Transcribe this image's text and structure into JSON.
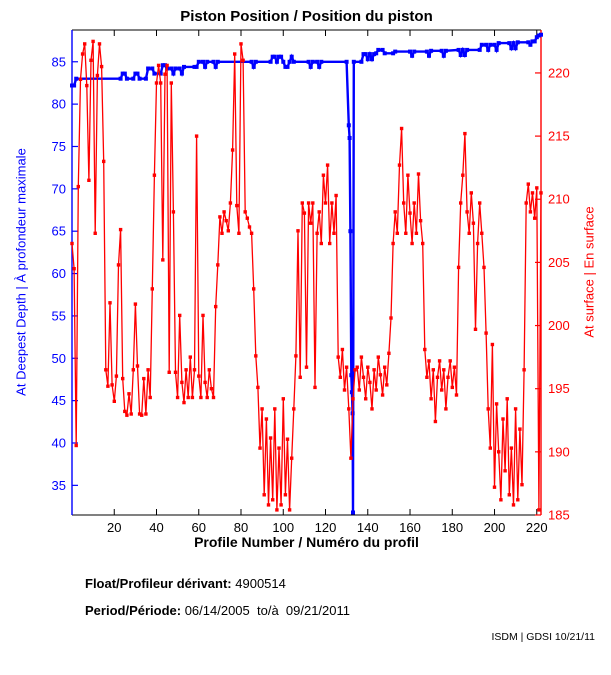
{
  "title": "Piston Position / Position du piston",
  "footer": {
    "float_label": "Float/Profileur dérivant:",
    "float_value": "4900514",
    "period_label": "Period/Période:",
    "period_value": "06/14/2005  to/à  09/21/2011",
    "credit": "ISDM | GDSI 10/21/11"
  },
  "chart_data": {
    "type": "line",
    "title": "Piston Position / Position du piston",
    "xlabel": "Profile Number / Numéro du profil",
    "xlim": [
      0,
      222
    ],
    "x_ticks": [
      20,
      40,
      60,
      80,
      100,
      120,
      140,
      160,
      180,
      200,
      220
    ],
    "grid": false,
    "left_axis": {
      "label": "At Deepest Depth | À profondeur maximale",
      "color": "#0000ff",
      "lim": [
        31.5,
        88.75
      ],
      "ticks": [
        35,
        40,
        45,
        50,
        55,
        60,
        65,
        70,
        75,
        80,
        85
      ]
    },
    "right_axis": {
      "label": "At surface | En surface",
      "color": "#ff0000",
      "lim": [
        185,
        223.4
      ],
      "ticks": [
        185,
        190,
        195,
        200,
        205,
        210,
        215,
        220
      ]
    },
    "series": [
      {
        "name": "piston-at-deepest-depth",
        "axis": "left",
        "color": "#0000ff",
        "line_width": 2.4,
        "marker_size": 4,
        "points": [
          [
            0,
            82.2
          ],
          [
            1,
            82.2
          ],
          [
            2,
            83
          ],
          [
            23,
            83
          ],
          [
            24,
            83.6
          ],
          [
            25,
            83.6
          ],
          [
            26,
            83
          ],
          [
            29,
            83
          ],
          [
            30,
            83.6
          ],
          [
            31,
            83.6
          ],
          [
            32,
            83
          ],
          [
            35,
            83
          ],
          [
            36,
            84.2
          ],
          [
            38,
            84.2
          ],
          [
            39,
            83.6
          ],
          [
            42,
            83.6
          ],
          [
            43,
            84.6
          ],
          [
            44,
            84.6
          ],
          [
            45,
            84.2
          ],
          [
            47,
            84.2
          ],
          [
            48,
            83.6
          ],
          [
            49,
            84.2
          ],
          [
            51,
            84.2
          ],
          [
            52,
            83.6
          ],
          [
            53,
            84.4
          ],
          [
            58,
            84.4
          ],
          [
            59,
            84.4
          ],
          [
            60,
            85
          ],
          [
            62,
            85
          ],
          [
            63,
            84.4
          ],
          [
            64,
            85
          ],
          [
            67,
            85
          ],
          [
            68,
            84.4
          ],
          [
            69,
            85
          ],
          [
            85,
            85
          ],
          [
            86,
            84.4
          ],
          [
            87,
            85
          ],
          [
            94,
            85
          ],
          [
            95,
            85.6
          ],
          [
            96,
            85.6
          ],
          [
            97,
            85
          ],
          [
            98,
            85.6
          ],
          [
            99,
            85.6
          ],
          [
            100,
            85
          ],
          [
            101,
            84.4
          ],
          [
            102,
            84.4
          ],
          [
            103,
            85
          ],
          [
            104,
            85.6
          ],
          [
            105,
            85
          ],
          [
            112,
            85
          ],
          [
            113,
            84.4
          ],
          [
            114,
            85
          ],
          [
            116,
            85
          ],
          [
            117,
            84.4
          ],
          [
            118,
            85
          ],
          [
            130,
            85
          ],
          [
            131,
            77.5
          ],
          [
            131.4,
            76
          ],
          [
            131.8,
            65
          ],
          [
            132.2,
            48
          ],
          [
            132.5,
            46
          ],
          [
            132.8,
            43.5
          ],
          [
            133,
            31.8
          ],
          [
            133.4,
            85
          ],
          [
            137,
            85
          ],
          [
            138,
            85.9
          ],
          [
            139,
            85.9
          ],
          [
            140,
            85.3
          ],
          [
            141,
            85.9
          ],
          [
            142,
            85.3
          ],
          [
            143,
            85.9
          ],
          [
            144,
            86
          ],
          [
            145,
            86.4
          ],
          [
            147,
            86.4
          ],
          [
            148,
            86
          ],
          [
            152,
            86
          ],
          [
            153,
            86.2
          ],
          [
            160,
            86.2
          ],
          [
            161,
            85.7
          ],
          [
            162,
            86.2
          ],
          [
            168,
            86.2
          ],
          [
            169,
            85.7
          ],
          [
            170,
            86.3
          ],
          [
            175,
            86.3
          ],
          [
            176,
            85.7
          ],
          [
            177,
            86.3
          ],
          [
            183,
            86.4
          ],
          [
            184,
            85.8
          ],
          [
            185,
            86.4
          ],
          [
            186,
            85.8
          ],
          [
            187,
            86.4
          ],
          [
            193,
            86.4
          ],
          [
            194,
            87
          ],
          [
            196,
            87
          ],
          [
            197,
            86.4
          ],
          [
            198,
            87
          ],
          [
            200,
            87
          ],
          [
            201,
            86.4
          ],
          [
            202,
            87.2
          ],
          [
            207,
            87.2
          ],
          [
            208,
            86.6
          ],
          [
            209,
            87.2
          ],
          [
            210,
            86.6
          ],
          [
            211,
            87.3
          ],
          [
            216,
            87.3
          ],
          [
            217,
            87
          ],
          [
            218,
            87.4
          ],
          [
            219,
            87.4
          ],
          [
            220,
            87.9
          ],
          [
            221,
            88.1
          ],
          [
            222,
            88.2
          ]
        ]
      },
      {
        "name": "piston-at-surface",
        "axis": "right",
        "color": "#ff0000",
        "line_width": 1.3,
        "marker_size": 3.4,
        "x_start": 0,
        "values": [
          206.5,
          204.5,
          190.5,
          211.0,
          219.5,
          221.5,
          222.3,
          219.0,
          211.5,
          221.0,
          222.5,
          207.3,
          219.8,
          222.3,
          220.5,
          213.0,
          196.5,
          195.2,
          201.8,
          195.3,
          194.0,
          196.0,
          204.8,
          207.6,
          195.8,
          193.2,
          192.9,
          194.6,
          193.0,
          196.5,
          201.7,
          196.8,
          193.0,
          192.9,
          195.8,
          193.0,
          196.5,
          194.3,
          202.9,
          211.9,
          219.2,
          220.6,
          219.2,
          205.2,
          219.9,
          220.6,
          196.3,
          219.2,
          209.0,
          196.3,
          194.3,
          200.8,
          195.5,
          193.9,
          196.5,
          194.3,
          197.5,
          194.3,
          196.5,
          215.0,
          196.0,
          194.3,
          200.8,
          195.5,
          194.3,
          196.5,
          195.0,
          194.3,
          201.5,
          204.8,
          208.6,
          207.3,
          209.0,
          208.3,
          207.5,
          209.7,
          213.9,
          221.5,
          209.5,
          207.3,
          222.3,
          221.0,
          209.0,
          208.5,
          207.8,
          207.3,
          202.9,
          197.6,
          195.1,
          190.3,
          193.4,
          186.6,
          192.6,
          185.8,
          191.1,
          186.2,
          193.4,
          185.4,
          190.3,
          185.8,
          194.2,
          186.6,
          191.0,
          185.4,
          189.5,
          193.4,
          197.6,
          207.5,
          195.9,
          209.7,
          208.9,
          196.7,
          209.7,
          208.1,
          209.7,
          195.1,
          207.3,
          209.0,
          206.5,
          211.9,
          209.7,
          212.7,
          206.5,
          209.7,
          207.3,
          210.3,
          197.5,
          195.9,
          198.1,
          194.9,
          196.7,
          193.4,
          189.5,
          194.2,
          196.5,
          196.7,
          194.9,
          197.5,
          195.9,
          194.2,
          196.7,
          195.5,
          193.4,
          196.5,
          194.9,
          197.5,
          196.1,
          194.5,
          196.7,
          195.3,
          197.8,
          200.6,
          206.5,
          209.0,
          207.3,
          212.7,
          215.6,
          209.7,
          207.3,
          211.9,
          208.9,
          206.5,
          209.7,
          207.3,
          212.0,
          208.3,
          206.5,
          198.1,
          195.9,
          197.2,
          194.2,
          196.5,
          192.4,
          195.9,
          197.2,
          194.9,
          196.5,
          193.4,
          195.9,
          197.2,
          195.1,
          196.7,
          194.5,
          204.6,
          209.7,
          211.9,
          215.2,
          209.0,
          207.3,
          210.5,
          208.1,
          199.7,
          206.5,
          209.7,
          207.3,
          204.6,
          199.4,
          193.4,
          190.3,
          198.5,
          187.2,
          193.8,
          190.0,
          186.2,
          192.6,
          188.5,
          194.2,
          186.6,
          190.3,
          185.8,
          193.4,
          186.2,
          191.8,
          187.4,
          196.5,
          209.7,
          211.2,
          209.0,
          210.5,
          208.5,
          210.9,
          185.4,
          210.5
        ]
      }
    ]
  }
}
